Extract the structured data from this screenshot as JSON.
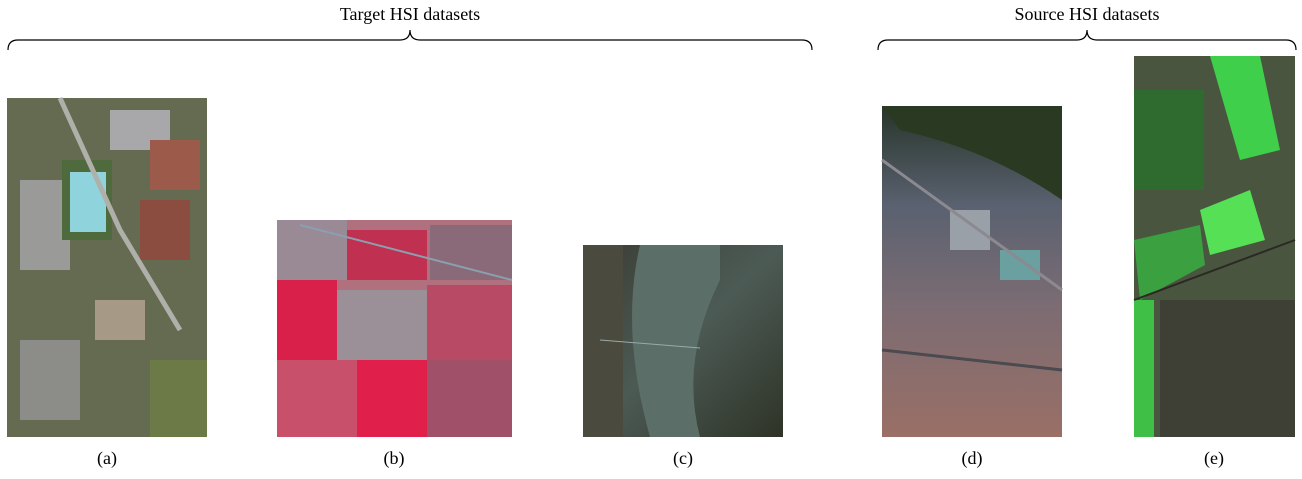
{
  "groups": [
    {
      "title": "Target HSI datasets"
    },
    {
      "title": "Source HSI datasets"
    }
  ],
  "panels": [
    {
      "label": "(a)"
    },
    {
      "label": "(b)"
    },
    {
      "label": "(c)"
    },
    {
      "label": "(d)"
    },
    {
      "label": "(e)"
    }
  ]
}
